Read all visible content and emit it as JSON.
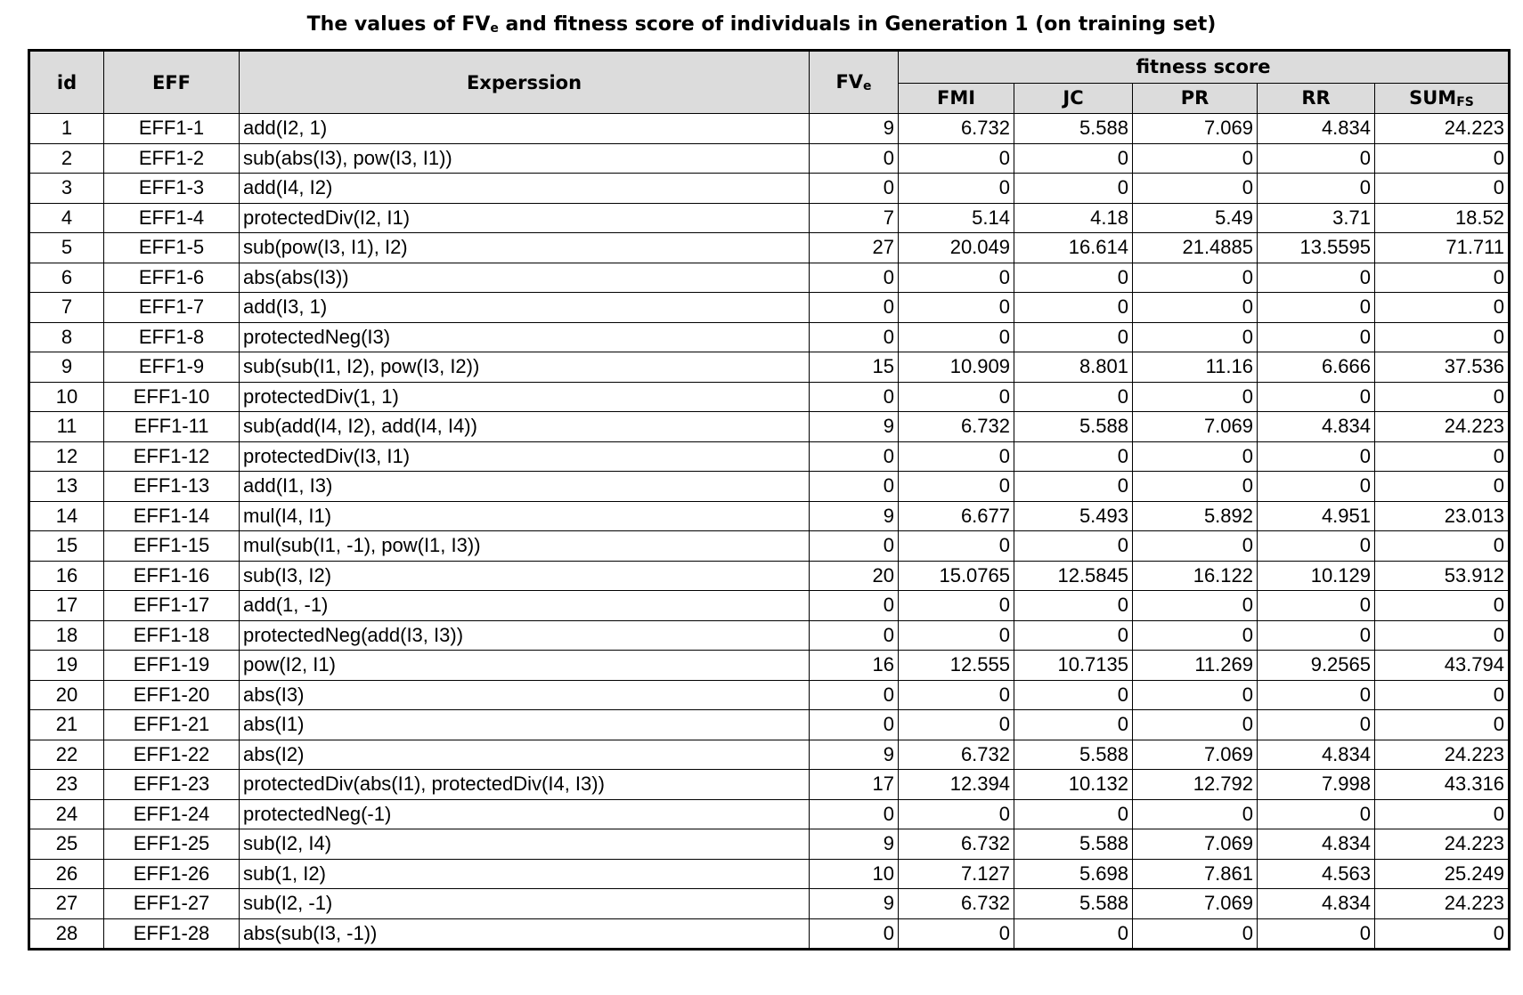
{
  "title": {
    "main": "The values of FV",
    "sub": "e",
    "rest": " and fitness score of individuals in Generation 1 (on training set)"
  },
  "headers": {
    "id": "id",
    "eff": "EFF",
    "expression": "Experssion",
    "fve_main": "FV",
    "fve_sub": "e",
    "fitness_score": "fitness score",
    "fmi": "FMI",
    "jc": "JC",
    "pr": "PR",
    "rr": "RR",
    "sum_main": "SUM",
    "sum_sub": "FS"
  },
  "rows": [
    {
      "id": "1",
      "eff": "EFF1-1",
      "expr": "add(I2, 1)",
      "fve": "9",
      "fmi": "6.732",
      "jc": "5.588",
      "pr": "7.069",
      "rr": "4.834",
      "sum": "24.223"
    },
    {
      "id": "2",
      "eff": "EFF1-2",
      "expr": "sub(abs(I3), pow(I3, I1))",
      "fve": "0",
      "fmi": "0",
      "jc": "0",
      "pr": "0",
      "rr": "0",
      "sum": "0"
    },
    {
      "id": "3",
      "eff": "EFF1-3",
      "expr": "add(I4, I2)",
      "fve": "0",
      "fmi": "0",
      "jc": "0",
      "pr": "0",
      "rr": "0",
      "sum": "0"
    },
    {
      "id": "4",
      "eff": "EFF1-4",
      "expr": "protectedDiv(I2, I1)",
      "fve": "7",
      "fmi": "5.14",
      "jc": "4.18",
      "pr": "5.49",
      "rr": "3.71",
      "sum": "18.52"
    },
    {
      "id": "5",
      "eff": "EFF1-5",
      "expr": "sub(pow(I3, I1), I2)",
      "fve": "27",
      "fmi": "20.049",
      "jc": "16.614",
      "pr": "21.4885",
      "rr": "13.5595",
      "sum": "71.711"
    },
    {
      "id": "6",
      "eff": "EFF1-6",
      "expr": "abs(abs(I3))",
      "fve": "0",
      "fmi": "0",
      "jc": "0",
      "pr": "0",
      "rr": "0",
      "sum": "0"
    },
    {
      "id": "7",
      "eff": "EFF1-7",
      "expr": "add(I3, 1)",
      "fve": "0",
      "fmi": "0",
      "jc": "0",
      "pr": "0",
      "rr": "0",
      "sum": "0"
    },
    {
      "id": "8",
      "eff": "EFF1-8",
      "expr": "protectedNeg(I3)",
      "fve": "0",
      "fmi": "0",
      "jc": "0",
      "pr": "0",
      "rr": "0",
      "sum": "0"
    },
    {
      "id": "9",
      "eff": "EFF1-9",
      "expr": "sub(sub(I1, I2), pow(I3, I2))",
      "fve": "15",
      "fmi": "10.909",
      "jc": "8.801",
      "pr": "11.16",
      "rr": "6.666",
      "sum": "37.536"
    },
    {
      "id": "10",
      "eff": "EFF1-10",
      "expr": "protectedDiv(1, 1)",
      "fve": "0",
      "fmi": "0",
      "jc": "0",
      "pr": "0",
      "rr": "0",
      "sum": "0"
    },
    {
      "id": "11",
      "eff": "EFF1-11",
      "expr": "sub(add(I4, I2), add(I4, I4))",
      "fve": "9",
      "fmi": "6.732",
      "jc": "5.588",
      "pr": "7.069",
      "rr": "4.834",
      "sum": "24.223"
    },
    {
      "id": "12",
      "eff": "EFF1-12",
      "expr": "protectedDiv(I3, I1)",
      "fve": "0",
      "fmi": "0",
      "jc": "0",
      "pr": "0",
      "rr": "0",
      "sum": "0"
    },
    {
      "id": "13",
      "eff": "EFF1-13",
      "expr": "add(I1, I3)",
      "fve": "0",
      "fmi": "0",
      "jc": "0",
      "pr": "0",
      "rr": "0",
      "sum": "0"
    },
    {
      "id": "14",
      "eff": "EFF1-14",
      "expr": "mul(I4, I1)",
      "fve": "9",
      "fmi": "6.677",
      "jc": "5.493",
      "pr": "5.892",
      "rr": "4.951",
      "sum": "23.013"
    },
    {
      "id": "15",
      "eff": "EFF1-15",
      "expr": "mul(sub(I1, -1), pow(I1, I3))",
      "fve": "0",
      "fmi": "0",
      "jc": "0",
      "pr": "0",
      "rr": "0",
      "sum": "0"
    },
    {
      "id": "16",
      "eff": "EFF1-16",
      "expr": "sub(I3, I2)",
      "fve": "20",
      "fmi": "15.0765",
      "jc": "12.5845",
      "pr": "16.122",
      "rr": "10.129",
      "sum": "53.912"
    },
    {
      "id": "17",
      "eff": "EFF1-17",
      "expr": "add(1, -1)",
      "fve": "0",
      "fmi": "0",
      "jc": "0",
      "pr": "0",
      "rr": "0",
      "sum": "0"
    },
    {
      "id": "18",
      "eff": "EFF1-18",
      "expr": "protectedNeg(add(I3, I3))",
      "fve": "0",
      "fmi": "0",
      "jc": "0",
      "pr": "0",
      "rr": "0",
      "sum": "0"
    },
    {
      "id": "19",
      "eff": "EFF1-19",
      "expr": "pow(I2, I1)",
      "fve": "16",
      "fmi": "12.555",
      "jc": "10.7135",
      "pr": "11.269",
      "rr": "9.2565",
      "sum": "43.794"
    },
    {
      "id": "20",
      "eff": "EFF1-20",
      "expr": "abs(I3)",
      "fve": "0",
      "fmi": "0",
      "jc": "0",
      "pr": "0",
      "rr": "0",
      "sum": "0"
    },
    {
      "id": "21",
      "eff": "EFF1-21",
      "expr": "abs(I1)",
      "fve": "0",
      "fmi": "0",
      "jc": "0",
      "pr": "0",
      "rr": "0",
      "sum": "0"
    },
    {
      "id": "22",
      "eff": "EFF1-22",
      "expr": "abs(I2)",
      "fve": "9",
      "fmi": "6.732",
      "jc": "5.588",
      "pr": "7.069",
      "rr": "4.834",
      "sum": "24.223"
    },
    {
      "id": "23",
      "eff": "EFF1-23",
      "expr": "protectedDiv(abs(I1), protectedDiv(I4, I3))",
      "fve": "17",
      "fmi": "12.394",
      "jc": "10.132",
      "pr": "12.792",
      "rr": "7.998",
      "sum": "43.316"
    },
    {
      "id": "24",
      "eff": "EFF1-24",
      "expr": "protectedNeg(-1)",
      "fve": "0",
      "fmi": "0",
      "jc": "0",
      "pr": "0",
      "rr": "0",
      "sum": "0"
    },
    {
      "id": "25",
      "eff": "EFF1-25",
      "expr": "sub(I2, I4)",
      "fve": "9",
      "fmi": "6.732",
      "jc": "5.588",
      "pr": "7.069",
      "rr": "4.834",
      "sum": "24.223"
    },
    {
      "id": "26",
      "eff": "EFF1-26",
      "expr": "sub(1, I2)",
      "fve": "10",
      "fmi": "7.127",
      "jc": "5.698",
      "pr": "7.861",
      "rr": "4.563",
      "sum": "25.249"
    },
    {
      "id": "27",
      "eff": "EFF1-27",
      "expr": "sub(I2, -1)",
      "fve": "9",
      "fmi": "6.732",
      "jc": "5.588",
      "pr": "7.069",
      "rr": "4.834",
      "sum": "24.223"
    },
    {
      "id": "28",
      "eff": "EFF1-28",
      "expr": "abs(sub(I3, -1))",
      "fve": "0",
      "fmi": "0",
      "jc": "0",
      "pr": "0",
      "rr": "0",
      "sum": "0"
    }
  ]
}
